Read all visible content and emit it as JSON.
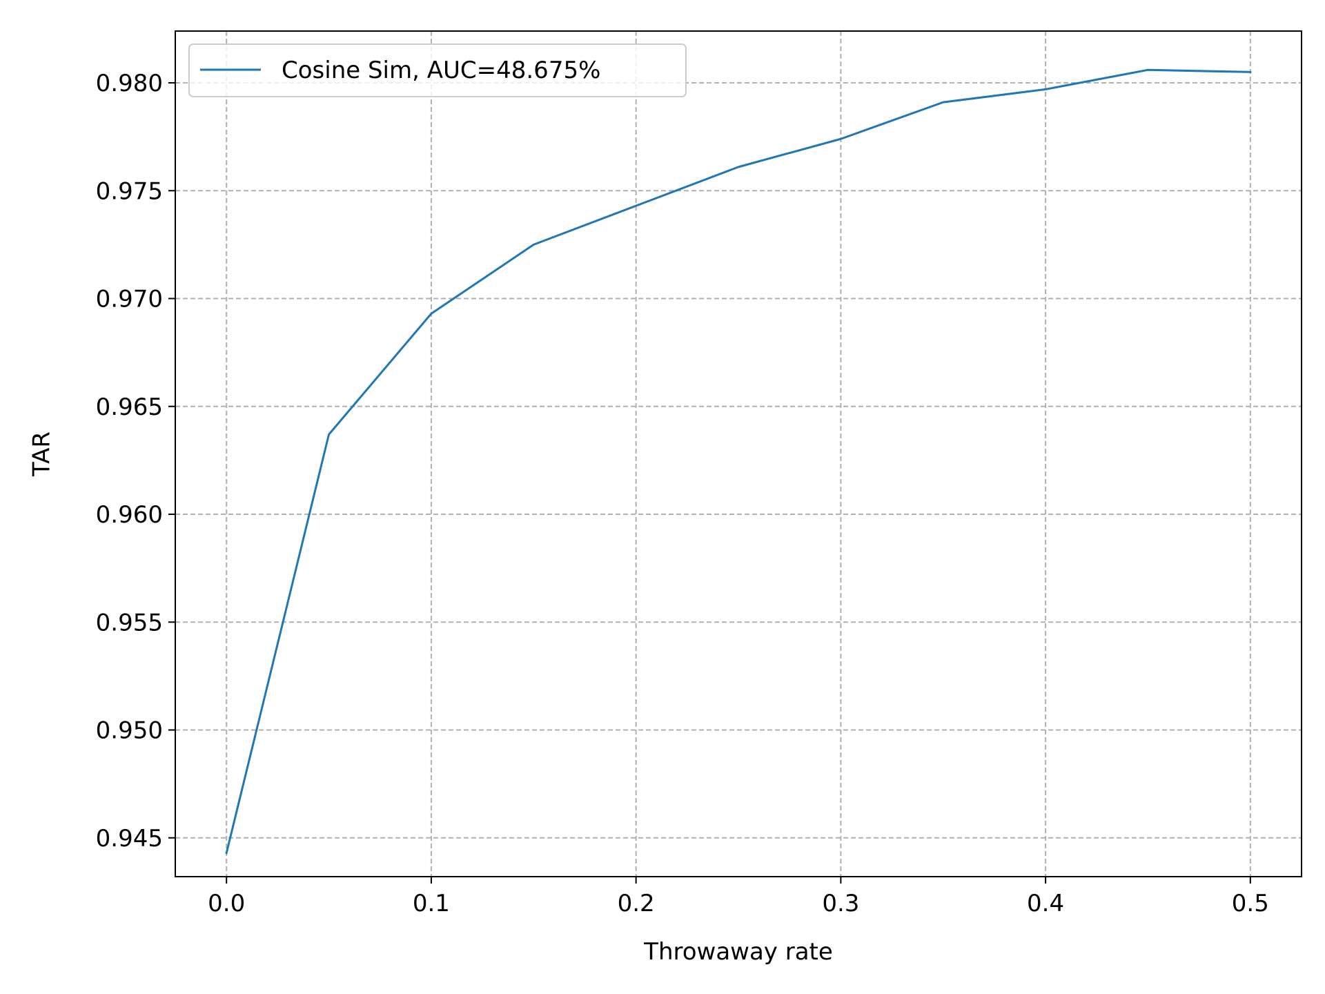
{
  "chart_data": {
    "type": "line",
    "title": "",
    "xlabel": "Throwaway rate",
    "ylabel": "TAR",
    "xlim": [
      -0.025,
      0.525
    ],
    "ylim": [
      0.9432,
      0.9824
    ],
    "x_ticks": [
      0.0,
      0.1,
      0.2,
      0.3,
      0.4,
      0.5
    ],
    "x_tick_labels": [
      "0.0",
      "0.1",
      "0.2",
      "0.3",
      "0.4",
      "0.5"
    ],
    "y_ticks": [
      0.945,
      0.95,
      0.955,
      0.96,
      0.965,
      0.97,
      0.975,
      0.98
    ],
    "y_tick_labels": [
      "0.945",
      "0.950",
      "0.955",
      "0.960",
      "0.965",
      "0.970",
      "0.975",
      "0.980"
    ],
    "grid": true,
    "grid_style": "dashed",
    "legend_position": "top-left",
    "x": [
      0.0,
      0.05,
      0.1,
      0.15,
      0.2,
      0.25,
      0.3,
      0.35,
      0.4,
      0.45,
      0.5
    ],
    "series": [
      {
        "name": "Cosine Sim, AUC=48.675%",
        "color": "#1f77b4",
        "values": [
          0.9443,
          0.9637,
          0.9693,
          0.9725,
          0.9743,
          0.9761,
          0.9774,
          0.9791,
          0.9797,
          0.9806,
          0.9805
        ]
      }
    ]
  }
}
